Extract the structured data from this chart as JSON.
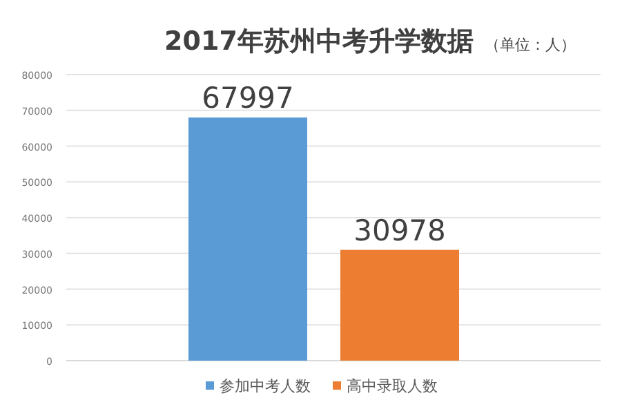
{
  "chart_data": {
    "type": "bar",
    "title": "2017年苏州中考升学数据",
    "subtitle": "（单位：人）",
    "categories": [
      null
    ],
    "series": [
      {
        "name": "参加中考人数",
        "color": "#5b9bd5",
        "values": [
          67997
        ]
      },
      {
        "name": "高中录取人数",
        "color": "#ed7d31",
        "values": [
          30978
        ]
      }
    ],
    "ylim": [
      0,
      80000
    ],
    "yticks": [
      0,
      10000,
      20000,
      30000,
      40000,
      50000,
      60000,
      70000,
      80000
    ],
    "grid": "y",
    "legend": "bottom",
    "data_labels": true
  }
}
